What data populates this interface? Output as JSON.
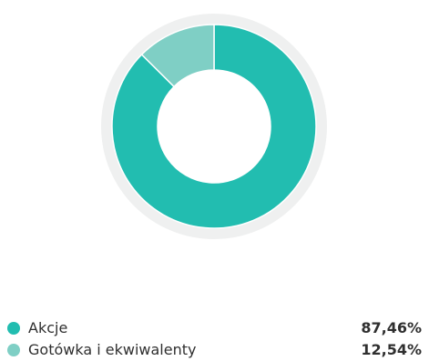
{
  "chart_data": {
    "type": "pie",
    "style": "donut",
    "categories": [
      "Akcje",
      "Gotówka i ekwiwalenty"
    ],
    "values": [
      87.46,
      12.54
    ],
    "value_labels": [
      "87,46%",
      "12,54%"
    ],
    "colors": [
      "#22bdb0",
      "#7fcfc5"
    ],
    "track_color": "#eff0f0",
    "legend_position": "bottom"
  },
  "legend": {
    "items": [
      {
        "label": "Akcje",
        "value": "87,46%",
        "color": "#22bdb0"
      },
      {
        "label": "Gotówka i ekwiwalenty",
        "value": "12,54%",
        "color": "#7fcfc5"
      }
    ]
  }
}
